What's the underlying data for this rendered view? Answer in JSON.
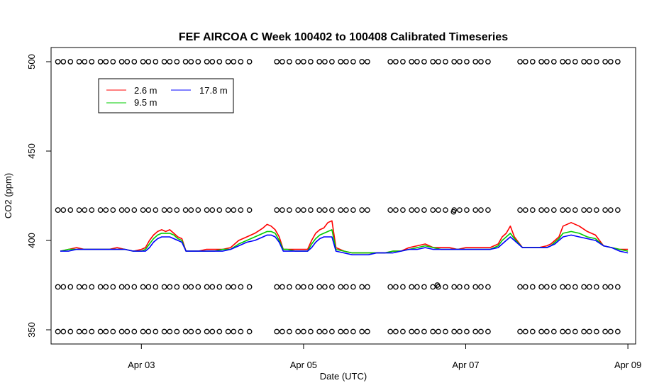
{
  "chart_data": {
    "type": "line",
    "title": "FEF AIRCOA C  Week 100402 to 100408  Calibrated Timeseries",
    "xlabel": "Date (UTC)",
    "ylabel": "CO2 (ppm)",
    "xlim": [
      -0.15,
      6.15
    ],
    "ylim": [
      335,
      505
    ],
    "x_unit": "days since 2010-04-02 00:00 UTC",
    "x_ticks": [
      {
        "value": 1,
        "label": "Apr 03"
      },
      {
        "value": 3,
        "label": "Apr 05"
      },
      {
        "value": 5,
        "label": "Apr 07"
      },
      {
        "value": 7,
        "label": "Apr 09"
      }
    ],
    "y_ticks": [
      350,
      400,
      450,
      500
    ],
    "grid": false,
    "legend": {
      "placement": "top-left",
      "entries": [
        {
          "name": "2.6 m",
          "color": "#ff0000"
        },
        {
          "name": "9.5 m",
          "color": "#00cc00"
        },
        {
          "name": "17.8 m",
          "color": "#0000ff"
        }
      ]
    },
    "series": [
      {
        "name": "2.6 m",
        "color": "#ff0000",
        "x": [
          0.0,
          0.1,
          0.2,
          0.3,
          0.4,
          0.5,
          0.6,
          0.7,
          0.8,
          0.9,
          1.0,
          1.05,
          1.1,
          1.15,
          1.2,
          1.25,
          1.3,
          1.35,
          1.4,
          1.45,
          1.5,
          1.55,
          1.6,
          1.65,
          1.7,
          1.8,
          1.9,
          2.0,
          2.1,
          2.2,
          2.3,
          2.4,
          2.5,
          2.55,
          2.6,
          2.65,
          2.7,
          2.75,
          2.8,
          2.9,
          3.0,
          3.05,
          3.1,
          3.15,
          3.2,
          3.25,
          3.3,
          3.35,
          3.4,
          3.5,
          3.6,
          3.7,
          3.8,
          3.9,
          4.0,
          4.1,
          4.2,
          4.3,
          4.4,
          4.5,
          4.6,
          4.7,
          4.8,
          4.9,
          5.0,
          5.1,
          5.2,
          5.3,
          5.4,
          5.45,
          5.5,
          5.55,
          5.6,
          5.7,
          5.8,
          5.9,
          6.0,
          6.05,
          6.1,
          6.15,
          6.2,
          6.3,
          6.4,
          6.5,
          6.6,
          6.7,
          6.8,
          6.9,
          7.0
        ],
        "values": [
          394,
          395,
          396,
          395,
          395,
          395,
          395,
          396,
          395,
          394,
          395,
          396,
          400,
          403,
          405,
          406,
          405,
          406,
          404,
          402,
          401,
          394,
          394,
          394,
          394,
          395,
          395,
          395,
          396,
          400,
          402,
          404,
          407,
          409,
          408,
          406,
          402,
          395,
          395,
          395,
          395,
          395,
          400,
          404,
          406,
          407,
          410,
          411,
          396,
          394,
          393,
          393,
          393,
          393,
          393,
          394,
          394,
          396,
          397,
          398,
          396,
          396,
          396,
          395,
          396,
          396,
          396,
          396,
          398,
          402,
          404,
          408,
          402,
          396,
          396,
          396,
          397,
          398,
          400,
          402,
          408,
          410,
          408,
          405,
          403,
          397,
          396,
          395,
          395
        ]
      },
      {
        "name": "9.5 m",
        "color": "#00cc00",
        "x": [
          0.0,
          0.1,
          0.2,
          0.3,
          0.4,
          0.5,
          0.6,
          0.7,
          0.8,
          0.9,
          1.0,
          1.05,
          1.1,
          1.15,
          1.2,
          1.25,
          1.3,
          1.35,
          1.4,
          1.45,
          1.5,
          1.55,
          1.6,
          1.65,
          1.7,
          1.8,
          1.9,
          2.0,
          2.1,
          2.2,
          2.3,
          2.4,
          2.5,
          2.55,
          2.6,
          2.65,
          2.7,
          2.75,
          2.8,
          2.9,
          3.0,
          3.05,
          3.1,
          3.15,
          3.2,
          3.25,
          3.3,
          3.35,
          3.4,
          3.5,
          3.6,
          3.7,
          3.8,
          3.9,
          4.0,
          4.1,
          4.2,
          4.3,
          4.4,
          4.5,
          4.6,
          4.7,
          4.8,
          4.9,
          5.0,
          5.1,
          5.2,
          5.3,
          5.4,
          5.45,
          5.5,
          5.55,
          5.6,
          5.7,
          5.8,
          5.9,
          6.0,
          6.05,
          6.1,
          6.15,
          6.2,
          6.3,
          6.4,
          6.5,
          6.6,
          6.7,
          6.8,
          6.9,
          7.0
        ],
        "values": [
          394,
          395,
          395,
          395,
          395,
          395,
          395,
          395,
          395,
          394,
          394,
          395,
          398,
          401,
          403,
          404,
          404,
          404,
          403,
          401,
          400,
          394,
          394,
          394,
          394,
          394,
          394,
          395,
          395,
          398,
          400,
          402,
          404,
          405,
          405,
          404,
          400,
          395,
          395,
          394,
          394,
          394,
          398,
          401,
          403,
          404,
          405,
          406,
          395,
          394,
          393,
          393,
          393,
          393,
          393,
          394,
          394,
          395,
          396,
          397,
          396,
          395,
          395,
          395,
          395,
          395,
          395,
          395,
          397,
          400,
          402,
          404,
          401,
          396,
          396,
          396,
          396,
          397,
          399,
          401,
          404,
          405,
          404,
          402,
          401,
          397,
          396,
          395,
          394
        ]
      },
      {
        "name": "17.8 m",
        "color": "#0000ff",
        "x": [
          0.0,
          0.1,
          0.2,
          0.3,
          0.4,
          0.5,
          0.6,
          0.7,
          0.8,
          0.9,
          1.0,
          1.05,
          1.1,
          1.15,
          1.2,
          1.25,
          1.3,
          1.35,
          1.4,
          1.45,
          1.5,
          1.55,
          1.6,
          1.65,
          1.7,
          1.8,
          1.9,
          2.0,
          2.1,
          2.2,
          2.3,
          2.4,
          2.5,
          2.55,
          2.6,
          2.65,
          2.7,
          2.75,
          2.8,
          2.9,
          3.0,
          3.05,
          3.1,
          3.15,
          3.2,
          3.25,
          3.3,
          3.35,
          3.4,
          3.5,
          3.6,
          3.7,
          3.8,
          3.9,
          4.0,
          4.1,
          4.2,
          4.3,
          4.4,
          4.5,
          4.6,
          4.7,
          4.8,
          4.9,
          5.0,
          5.1,
          5.2,
          5.3,
          5.4,
          5.45,
          5.5,
          5.55,
          5.6,
          5.7,
          5.8,
          5.9,
          6.0,
          6.05,
          6.1,
          6.15,
          6.2,
          6.3,
          6.4,
          6.5,
          6.6,
          6.7,
          6.8,
          6.9,
          7.0
        ],
        "values": [
          394,
          394,
          395,
          395,
          395,
          395,
          395,
          395,
          395,
          394,
          394,
          394,
          396,
          399,
          401,
          402,
          402,
          402,
          401,
          400,
          399,
          394,
          394,
          394,
          394,
          394,
          394,
          394,
          395,
          397,
          399,
          400,
          402,
          403,
          403,
          402,
          399,
          394,
          394,
          394,
          394,
          394,
          396,
          399,
          401,
          402,
          402,
          402,
          394,
          393,
          392,
          392,
          392,
          393,
          393,
          393,
          394,
          395,
          395,
          396,
          395,
          395,
          395,
          395,
          395,
          395,
          395,
          395,
          396,
          398,
          400,
          402,
          400,
          396,
          396,
          396,
          396,
          397,
          398,
          400,
          402,
          403,
          402,
          401,
          400,
          397,
          396,
          394,
          393
        ]
      }
    ],
    "calibration_points": {
      "levels": [
        500,
        417,
        374,
        349
      ],
      "segments": [
        [
          -0.05,
          2.35
        ],
        [
          2.65,
          3.85
        ],
        [
          4.05,
          5.35
        ],
        [
          5.65,
          6.9
        ]
      ],
      "outliers": [
        {
          "x": 4.85,
          "y": 416
        },
        {
          "x": 4.65,
          "y": 375
        }
      ]
    }
  }
}
